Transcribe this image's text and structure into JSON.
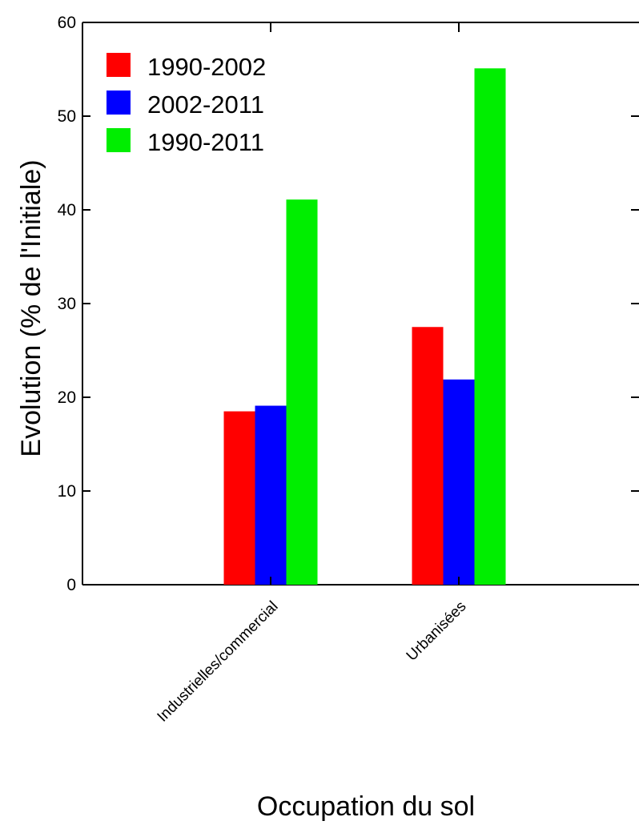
{
  "chart_data": {
    "type": "bar",
    "categories": [
      "Industrielles/commercial",
      "Urbanisées"
    ],
    "series": [
      {
        "name": "1990-2002",
        "color": "#ff0000",
        "values": [
          18.5,
          27.5
        ]
      },
      {
        "name": "2002-2011",
        "color": "#0000ff",
        "values": [
          19.1,
          21.9
        ]
      },
      {
        "name": "1990-2011",
        "color": "#00ee00",
        "values": [
          41.1,
          55.1
        ]
      }
    ],
    "title": "",
    "xlabel": "Occupation du sol",
    "ylabel": "Evolution (% de l'Initiale)",
    "ylim": [
      0,
      60
    ],
    "yticks": [
      0,
      10,
      20,
      30,
      40,
      50,
      60
    ],
    "grid": false,
    "legend_position": "top-left"
  }
}
